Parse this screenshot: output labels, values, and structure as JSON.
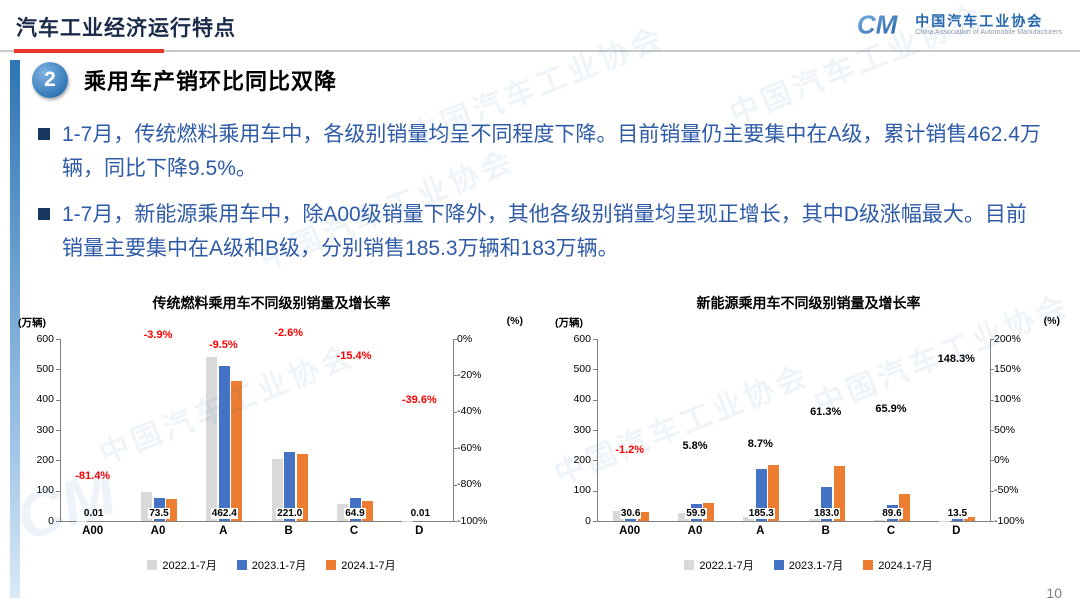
{
  "header": {
    "title": "汽车工业经济运行特点",
    "logo": {
      "mark": "CM",
      "org_cn": "中国汽车工业协会",
      "org_en": "China Association of Automobile Manufacturers"
    }
  },
  "section": {
    "number": "2",
    "heading": "乘用车产销环比同比双降"
  },
  "bullets": [
    "1-7月，传统燃料乘用车中，各级别销量均呈不同程度下降。目前销量仍主要集中在A级，累计销售462.4万辆，同比下降9.5%。",
    "1-7月，新能源乘用车中，除A00级销量下降外，其他各级别销量均呈现正增长，其中D级涨幅最大。目前销量主要集中在A级和B级，分别销售185.3万辆和183万辆。"
  ],
  "watermark": "中国汽车工业协会",
  "page_number": "10",
  "colors": {
    "accent_red": "#E8372C",
    "title_navy": "#1A2B49",
    "body_blue": "#2F5BA7",
    "bullet_navy": "#17375E",
    "logo_blue": "#2566AD",
    "bar_2022": "#D9D9D9",
    "bar_2023": "#4472C4",
    "bar_2024": "#ED7D31",
    "growth_negative": "#FF0000"
  },
  "chart_data": [
    {
      "type": "bar",
      "title": "传统燃料乘用车不同级别销量及增长率",
      "unit_left": "(万辆)",
      "unit_right": "(%)",
      "categories": [
        "A00",
        "A0",
        "A",
        "B",
        "C",
        "D"
      ],
      "series": [
        {
          "name": "2022.1-7月",
          "color": "#D9D9D9",
          "values": [
            0.3,
            95,
            541,
            205,
            55,
            0.6
          ]
        },
        {
          "name": "2023.1-7月",
          "color": "#4472C4",
          "values": [
            0.05,
            76.5,
            511,
            226.9,
            76.7,
            0.02
          ]
        },
        {
          "name": "2024.1-7月",
          "color": "#ED7D31",
          "values": [
            0.01,
            73.5,
            462.4,
            221.0,
            64.9,
            0.01
          ]
        }
      ],
      "value_labels": [
        "0.01",
        "73.5",
        "462.4",
        "221.0",
        "64.9",
        "0.01"
      ],
      "growth_labels": [
        {
          "label": "-81.4%",
          "value": -81.4,
          "color": "#FF0000"
        },
        {
          "label": "-3.9%",
          "value": -3.9,
          "color": "#FF0000"
        },
        {
          "label": "-9.5%",
          "value": -9.5,
          "color": "#FF0000"
        },
        {
          "label": "-2.6%",
          "value": -2.6,
          "color": "#FF0000"
        },
        {
          "label": "-15.4%",
          "value": -15.4,
          "color": "#FF0000"
        },
        {
          "label": "-39.6%",
          "value": -39.6,
          "color": "#FF0000"
        }
      ],
      "left_axis": {
        "min": 0,
        "max": 600,
        "ticks": [
          0,
          100,
          200,
          300,
          400,
          500,
          600
        ]
      },
      "right_axis": {
        "min": -100,
        "max": 0,
        "ticks": [
          0,
          -20,
          -40,
          -60,
          -80,
          -100
        ]
      },
      "legend_position": "bottom",
      "grid": false
    },
    {
      "type": "bar",
      "title": "新能源乘用车不同级别销量及增长率",
      "unit_left": "(万辆)",
      "unit_right": "(%)",
      "categories": [
        "A00",
        "A0",
        "A",
        "B",
        "C",
        "D"
      ],
      "series": [
        {
          "name": "2022.1-7月",
          "color": "#D9D9D9",
          "values": [
            33,
            26,
            12,
            6,
            3,
            0.5
          ]
        },
        {
          "name": "2023.1-7月",
          "color": "#4472C4",
          "values": [
            31.0,
            56.6,
            170.5,
            113.4,
            54.0,
            5.4
          ]
        },
        {
          "name": "2024.1-7月",
          "color": "#ED7D31",
          "values": [
            30.6,
            59.9,
            185.3,
            183.0,
            89.6,
            13.5
          ]
        }
      ],
      "value_labels": [
        "30.6",
        "59.9",
        "185.3",
        "183.0",
        "89.6",
        "13.5"
      ],
      "growth_labels": [
        {
          "label": "-1.2%",
          "value": -1.2,
          "color": "#FF0000"
        },
        {
          "label": "5.8%",
          "value": 5.8,
          "color": "#000000"
        },
        {
          "label": "8.7%",
          "value": 8.7,
          "color": "#000000"
        },
        {
          "label": "61.3%",
          "value": 61.3,
          "color": "#000000"
        },
        {
          "label": "65.9%",
          "value": 65.9,
          "color": "#000000"
        },
        {
          "label": "148.3%",
          "value": 148.3,
          "color": "#000000"
        }
      ],
      "left_axis": {
        "min": 0,
        "max": 600,
        "ticks": [
          0,
          100,
          200,
          300,
          400,
          500,
          600
        ]
      },
      "right_axis": {
        "min": -100,
        "max": 200,
        "ticks": [
          200,
          150,
          100,
          50,
          0,
          -50,
          -100
        ]
      },
      "legend_position": "bottom",
      "grid": false
    }
  ]
}
